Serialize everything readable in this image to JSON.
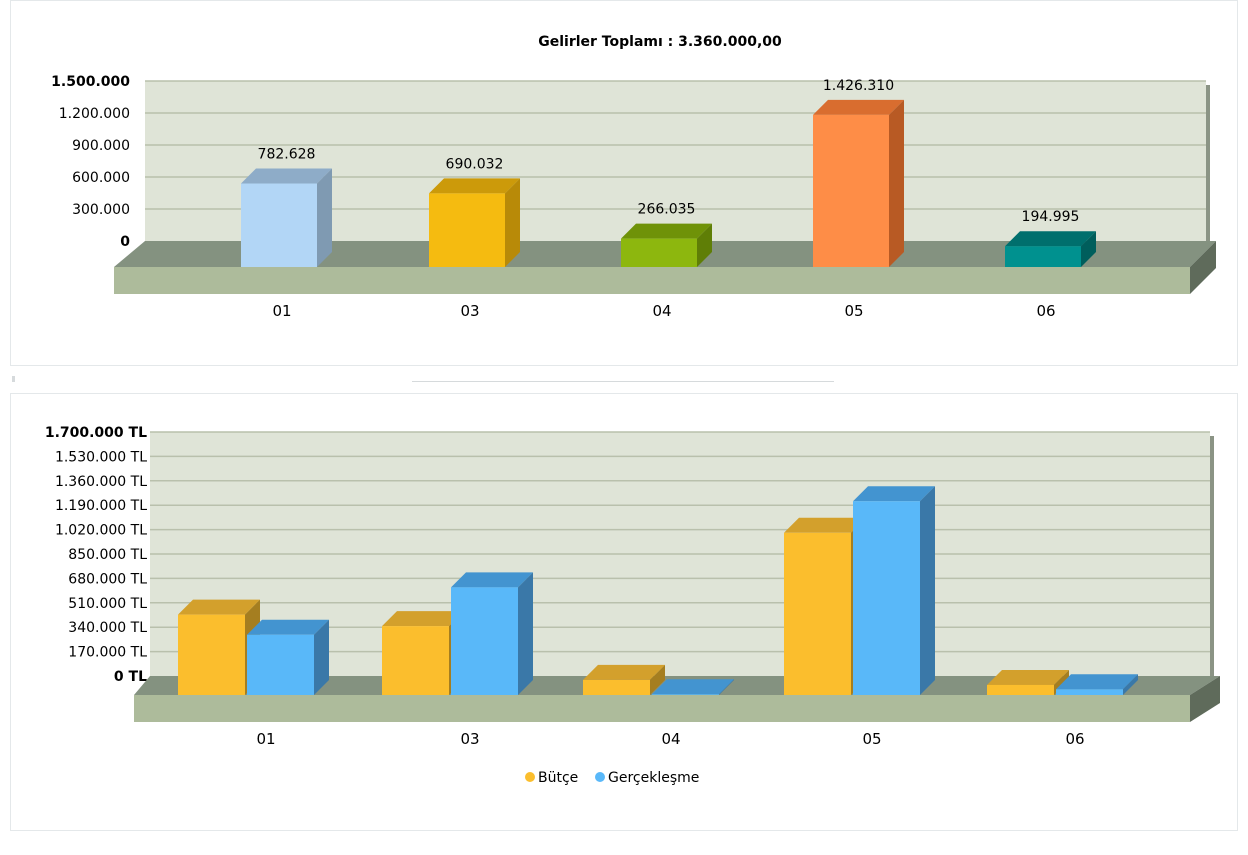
{
  "colors": {
    "plot_bg": "#dfe4d7",
    "grid": "#b9c0ac",
    "floor_top": "#849280",
    "floor_front": "#adbb9b"
  },
  "chart_data": [
    {
      "type": "bar",
      "title": "Gelirler Toplamı : 3.360.000,00",
      "categories": [
        "01",
        "03",
        "04",
        "05",
        "06"
      ],
      "values": [
        782628,
        690032,
        266035,
        1426310,
        194995
      ],
      "value_labels": [
        "782.628",
        "690.032",
        "266.035",
        "1.426.310",
        "194.995"
      ],
      "colors": [
        "#b2d6f6",
        "#f5bb10",
        "#8db70e",
        "#fe8d47",
        "#00918f"
      ],
      "top_colors": [
        "#8eacc8",
        "#cc9a0a",
        "#6f9208",
        "#d96d2f",
        "#006f6d"
      ],
      "side_colors": [
        "#7f9ab2",
        "#b88a08",
        "#5f7e06",
        "#b85a24",
        "#005e5c"
      ],
      "ylim": [
        0,
        1500000
      ],
      "yticks": [
        "0",
        "300.000",
        "600.000",
        "900.000",
        "1.200.000",
        "1.500.000"
      ],
      "ytick_values": [
        0,
        300000,
        600000,
        900000,
        1200000,
        1500000
      ],
      "grid": true
    },
    {
      "type": "bar",
      "categories": [
        "01",
        "03",
        "04",
        "05",
        "06"
      ],
      "series": [
        {
          "name": "Bütçe",
          "values": [
            560000,
            480000,
            105000,
            1130000,
            70000
          ],
          "color": "#fbbe2d",
          "top_color": "#d3a02c",
          "side_color": "#a57e20"
        },
        {
          "name": "Gerçekleşme",
          "values": [
            420000,
            750000,
            5000,
            1350000,
            40000
          ],
          "color": "#59b8f9",
          "top_color": "#4394d0",
          "side_color": "#3a78a8"
        }
      ],
      "ylim": [
        0,
        1700000
      ],
      "yticks": [
        "0 TL",
        "170.000 TL",
        "340.000 TL",
        "510.000 TL",
        "680.000 TL",
        "850.000 TL",
        "1.020.000 TL",
        "1.190.000 TL",
        "1.360.000 TL",
        "1.530.000 TL",
        "1.700.000 TL"
      ],
      "ytick_values": [
        0,
        170000,
        340000,
        510000,
        680000,
        850000,
        1020000,
        1190000,
        1360000,
        1530000,
        1700000
      ],
      "legend_position": "bottom-center",
      "grid": true
    }
  ]
}
